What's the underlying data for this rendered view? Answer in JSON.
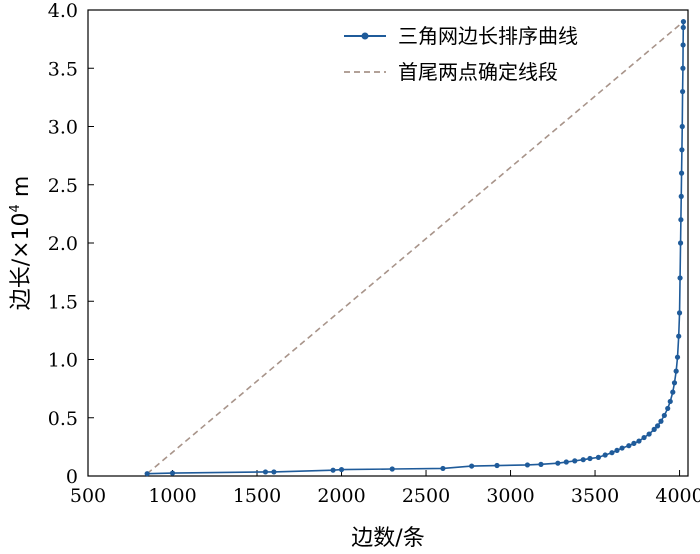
{
  "chart_data": {
    "type": "line",
    "title": "",
    "xlabel": "边数/条",
    "ylabel_prefix": "边长/×10",
    "ylabel_exp": "4",
    "ylabel_unit": " m",
    "xlim": [
      500,
      4050
    ],
    "ylim": [
      0,
      4.0
    ],
    "xticks": [
      500,
      1000,
      1500,
      2000,
      2500,
      3000,
      3500,
      4000
    ],
    "yticks": [
      0,
      0.5,
      1.0,
      1.5,
      2.0,
      2.5,
      3.0,
      3.5,
      4.0
    ],
    "xtick_labels": [
      "500",
      "1000",
      "1500",
      "2000",
      "2500",
      "3000",
      "3500",
      "4000"
    ],
    "ytick_labels": [
      "0",
      "0.5",
      "1.0",
      "1.5",
      "2.0",
      "2.5",
      "3.0",
      "3.5",
      "4.0"
    ],
    "grid": false,
    "legend_position": "top-right",
    "series": [
      {
        "name": "三角网边长排序曲线",
        "color": "#1f5b9a",
        "style": "solid-with-markers",
        "x": [
          850,
          1000,
          1550,
          1600,
          1950,
          2000,
          2300,
          2600,
          2770,
          2920,
          3100,
          3180,
          3280,
          3330,
          3380,
          3430,
          3470,
          3520,
          3560,
          3600,
          3630,
          3660,
          3700,
          3730,
          3760,
          3790,
          3820,
          3850,
          3870,
          3890,
          3910,
          3930,
          3945,
          3960,
          3970,
          3980,
          3988,
          3995,
          4000,
          4003,
          4006,
          4008,
          4010,
          4012,
          4014,
          4016,
          4018,
          4020,
          4021,
          4022,
          4023
        ],
        "y": [
          0.02,
          0.025,
          0.035,
          0.035,
          0.05,
          0.055,
          0.06,
          0.065,
          0.085,
          0.09,
          0.095,
          0.1,
          0.11,
          0.12,
          0.13,
          0.14,
          0.15,
          0.16,
          0.18,
          0.2,
          0.22,
          0.24,
          0.26,
          0.28,
          0.3,
          0.33,
          0.36,
          0.4,
          0.43,
          0.47,
          0.52,
          0.58,
          0.64,
          0.72,
          0.8,
          0.9,
          1.02,
          1.2,
          1.4,
          1.7,
          2.0,
          2.2,
          2.4,
          2.6,
          2.8,
          3.0,
          3.3,
          3.5,
          3.7,
          3.85,
          3.9
        ]
      },
      {
        "name": "首尾两点确定线段",
        "color": "#a8948a",
        "style": "dashed",
        "x": [
          850,
          4023
        ],
        "y": [
          0.02,
          3.9
        ]
      }
    ]
  }
}
